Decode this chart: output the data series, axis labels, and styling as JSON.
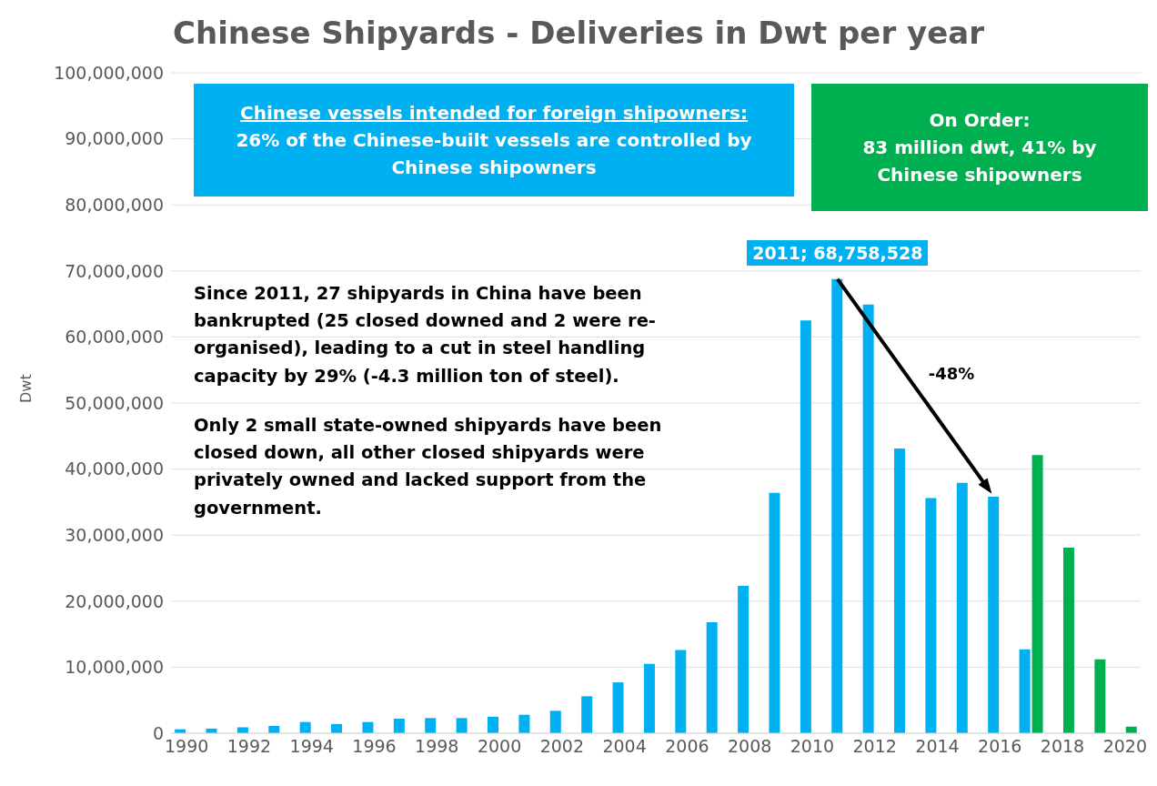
{
  "chart_data": {
    "type": "bar",
    "title": "Chinese Shipyards - Deliveries in Dwt per year",
    "ylabel": "Dwt",
    "categories": [
      "1990",
      null,
      "1992",
      null,
      "1994",
      null,
      "1996",
      null,
      "1998",
      null,
      "2000",
      null,
      "2002",
      null,
      "2004",
      null,
      "2006",
      null,
      "2008",
      null,
      "2010",
      null,
      "2012",
      null,
      "2014",
      null,
      "2016",
      null,
      "2018",
      null,
      "2020"
    ],
    "series": [
      {
        "color": "#00b0f0",
        "values": [
          600000,
          700000,
          900000,
          1100000,
          1700000,
          1400000,
          1700000,
          2200000,
          2300000,
          2300000,
          2500000,
          2800000,
          3400000,
          5600000,
          7700000,
          10500000,
          12600000,
          16800000,
          22300000,
          36400000,
          62500000,
          68758528,
          64900000,
          43100000,
          35600000,
          37900000,
          35800000,
          12700000,
          null,
          null,
          null
        ]
      },
      {
        "color": "#00b050",
        "values": [
          null,
          null,
          null,
          null,
          null,
          null,
          null,
          null,
          null,
          null,
          null,
          null,
          null,
          null,
          null,
          null,
          null,
          null,
          null,
          null,
          null,
          null,
          null,
          null,
          null,
          null,
          null,
          42100000,
          28100000,
          11200000,
          1000000
        ]
      }
    ],
    "ylim": [
      0,
      100000000
    ],
    "yticks": [
      {
        "value": 0,
        "label": "0"
      },
      {
        "value": 10000000,
        "label": "10,000,000"
      },
      {
        "value": 20000000,
        "label": "20,000,000"
      },
      {
        "value": 30000000,
        "label": "30,000,000"
      },
      {
        "value": 40000000,
        "label": "40,000,000"
      },
      {
        "value": 50000000,
        "label": "50,000,000"
      },
      {
        "value": 60000000,
        "label": "60,000,000"
      },
      {
        "value": 70000000,
        "label": "70,000,000"
      },
      {
        "value": 80000000,
        "label": "80,000,000"
      },
      {
        "value": 90000000,
        "label": "90,000,000"
      },
      {
        "value": 100000000,
        "label": "100,000,000"
      }
    ],
    "grid": "y",
    "annotations": [
      "Chinese vessels intended for foreign shipowners:",
      "26% of the Chinese-built vessels are controlled by Chinese shipowners",
      "On Order:",
      "83 million dwt, 41% by Chinese shipowners",
      "Since 2011, 27 shipyards in China have been bankrupted (25 closed downed and 2 were re-organised), leading to a cut in steel handling capacity by 29% (-4.3 million ton of steel).",
      "Only 2 small state-owned shipyards have been closed down, all other closed shipyards were privately owned and lacked support from the government.",
      "2011; 68,758,528",
      "-48%"
    ]
  }
}
